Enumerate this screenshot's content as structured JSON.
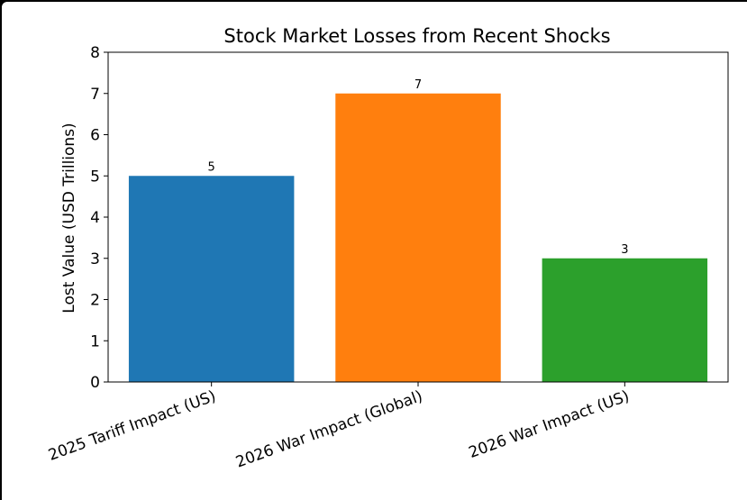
{
  "chart_data": {
    "type": "bar",
    "title": "Stock Market Losses from Recent Shocks",
    "xlabel": "",
    "ylabel": "Lost Value (USD Trillions)",
    "categories": [
      "2025 Tariff Impact (US)",
      "2026 War Impact (Global)",
      "2026 War Impact (US)"
    ],
    "values": [
      5,
      7,
      3
    ],
    "data_labels": [
      "5",
      "7",
      "3"
    ],
    "colors": [
      "#1f77b4",
      "#ff7f0e",
      "#2ca02c"
    ],
    "ylim": [
      0,
      8
    ],
    "yticks": [
      "0",
      "1",
      "2",
      "3",
      "4",
      "5",
      "6",
      "7",
      "8"
    ],
    "grid": false,
    "legend": "none"
  }
}
